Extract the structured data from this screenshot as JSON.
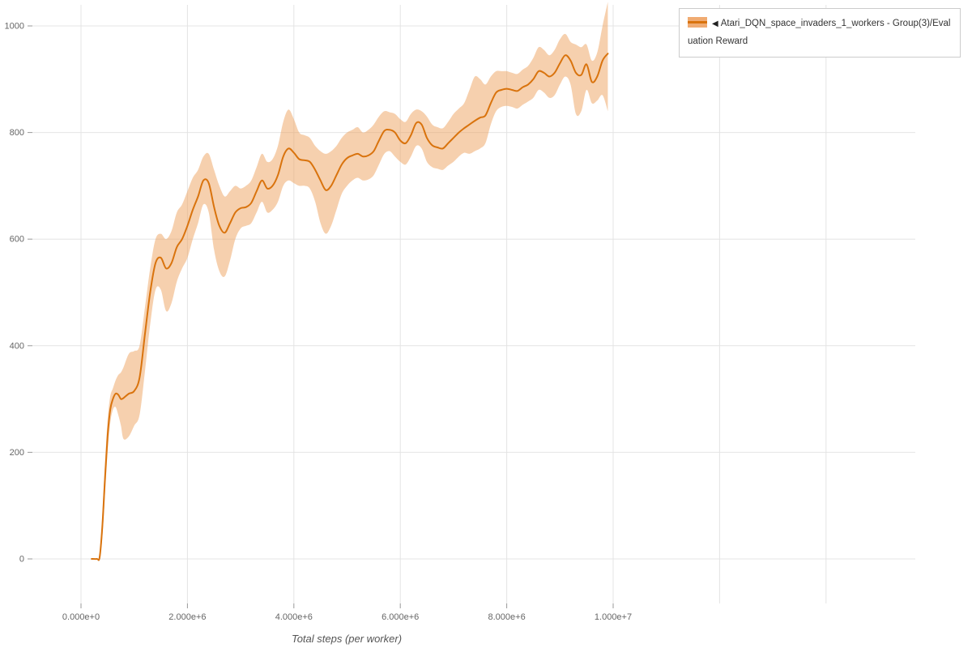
{
  "page": {
    "background": "#ffffff"
  },
  "legend": {
    "collapse_icon": "◀",
    "label": "Atari_DQN_space_invaders_1_workers - Group(3)/Evaluation Reward",
    "swatch_band_color": "#f0ab72",
    "swatch_line_color": "#d9730d"
  },
  "chart_data": {
    "type": "line",
    "title": "",
    "xlabel": "Total steps (per worker)",
    "ylabel": "",
    "grid": true,
    "legend_position": "top-right",
    "x_tick_labels": [
      "0.000e+0",
      "2.000e+6",
      "4.000e+6",
      "6.000e+6",
      "8.000e+6",
      "1.000e+7"
    ],
    "x_tick_values": [
      0,
      2000000,
      4000000,
      6000000,
      8000000,
      10000000
    ],
    "x_grid_extra": [
      12000000,
      14000000
    ],
    "y_ticks": [
      0,
      200,
      400,
      600,
      800,
      1000
    ],
    "xlim": [
      0,
      15700000
    ],
    "ylim": [
      -84,
      1060
    ],
    "colors": {
      "line": "#d9730d",
      "band": "#eda15e",
      "band_opacity": 0.5,
      "grid": "#e4e4e4",
      "tick": "#999999",
      "tick_label": "#666666",
      "axis_title": "#555555"
    },
    "series": [
      {
        "name": "Atari_DQN_space_invaders_1_workers - Group(3)/Evaluation Reward",
        "x": [
          200000,
          300000,
          350000,
          400000,
          450000,
          500000,
          550000,
          600000,
          650000,
          700000,
          750000,
          800000,
          900000,
          1000000,
          1100000,
          1200000,
          1300000,
          1400000,
          1500000,
          1600000,
          1700000,
          1800000,
          1900000,
          2000000,
          2100000,
          2200000,
          2300000,
          2400000,
          2500000,
          2600000,
          2700000,
          2800000,
          2900000,
          3000000,
          3100000,
          3200000,
          3300000,
          3400000,
          3500000,
          3600000,
          3700000,
          3800000,
          3900000,
          4000000,
          4100000,
          4200000,
          4300000,
          4400000,
          4500000,
          4600000,
          4700000,
          4800000,
          4900000,
          5000000,
          5100000,
          5200000,
          5300000,
          5400000,
          5500000,
          5600000,
          5700000,
          5800000,
          5900000,
          6000000,
          6100000,
          6200000,
          6300000,
          6400000,
          6500000,
          6600000,
          6700000,
          6800000,
          6900000,
          7000000,
          7100000,
          7200000,
          7300000,
          7400000,
          7500000,
          7600000,
          7700000,
          7800000,
          7900000,
          8000000,
          8100000,
          8200000,
          8300000,
          8400000,
          8500000,
          8600000,
          8700000,
          8800000,
          8900000,
          9000000,
          9100000,
          9200000,
          9300000,
          9400000,
          9500000,
          9600000,
          9700000,
          9800000,
          9900000
        ],
        "mean": [
          0,
          0,
          3,
          60,
          150,
          230,
          280,
          300,
          310,
          308,
          300,
          302,
          310,
          315,
          340,
          420,
          500,
          555,
          565,
          545,
          555,
          585,
          600,
          625,
          655,
          680,
          710,
          705,
          660,
          625,
          612,
          630,
          650,
          658,
          660,
          668,
          690,
          710,
          695,
          700,
          720,
          755,
          770,
          762,
          750,
          748,
          745,
          730,
          710,
          692,
          700,
          720,
          740,
          752,
          757,
          760,
          755,
          757,
          765,
          785,
          803,
          805,
          800,
          785,
          780,
          795,
          818,
          815,
          790,
          776,
          772,
          770,
          780,
          790,
          800,
          808,
          815,
          822,
          828,
          832,
          855,
          875,
          880,
          882,
          880,
          878,
          885,
          890,
          900,
          915,
          912,
          905,
          912,
          930,
          945,
          935,
          912,
          908,
          928,
          895,
          905,
          935,
          948
        ],
        "lower": [
          0,
          0,
          2,
          40,
          120,
          200,
          255,
          280,
          285,
          270,
          250,
          225,
          230,
          250,
          270,
          350,
          440,
          505,
          505,
          465,
          480,
          520,
          545,
          565,
          600,
          630,
          665,
          650,
          580,
          540,
          530,
          560,
          600,
          620,
          625,
          630,
          650,
          670,
          650,
          655,
          670,
          700,
          710,
          705,
          700,
          700,
          695,
          670,
          630,
          610,
          625,
          655,
          685,
          700,
          710,
          715,
          710,
          712,
          720,
          740,
          760,
          765,
          755,
          745,
          740,
          755,
          775,
          770,
          745,
          735,
          732,
          730,
          738,
          745,
          755,
          762,
          760,
          765,
          770,
          780,
          815,
          840,
          848,
          850,
          848,
          845,
          852,
          858,
          865,
          880,
          875,
          865,
          870,
          890,
          905,
          890,
          835,
          840,
          880,
          855,
          860,
          870,
          840
        ],
        "upper": [
          0,
          0,
          5,
          80,
          180,
          260,
          305,
          320,
          335,
          345,
          350,
          360,
          385,
          390,
          400,
          470,
          545,
          600,
          610,
          600,
          615,
          650,
          665,
          690,
          715,
          730,
          755,
          760,
          730,
          700,
          680,
          690,
          700,
          695,
          700,
          710,
          735,
          760,
          745,
          750,
          775,
          820,
          843,
          825,
          800,
          795,
          790,
          775,
          765,
          760,
          765,
          775,
          790,
          800,
          805,
          810,
          800,
          805,
          815,
          830,
          840,
          838,
          835,
          825,
          820,
          835,
          843,
          840,
          830,
          815,
          810,
          808,
          820,
          835,
          845,
          855,
          880,
          905,
          900,
          890,
          905,
          915,
          915,
          915,
          912,
          910,
          918,
          925,
          940,
          960,
          955,
          945,
          955,
          975,
          985,
          970,
          965,
          960,
          965,
          935,
          950,
          1000,
          1045
        ]
      }
    ]
  }
}
